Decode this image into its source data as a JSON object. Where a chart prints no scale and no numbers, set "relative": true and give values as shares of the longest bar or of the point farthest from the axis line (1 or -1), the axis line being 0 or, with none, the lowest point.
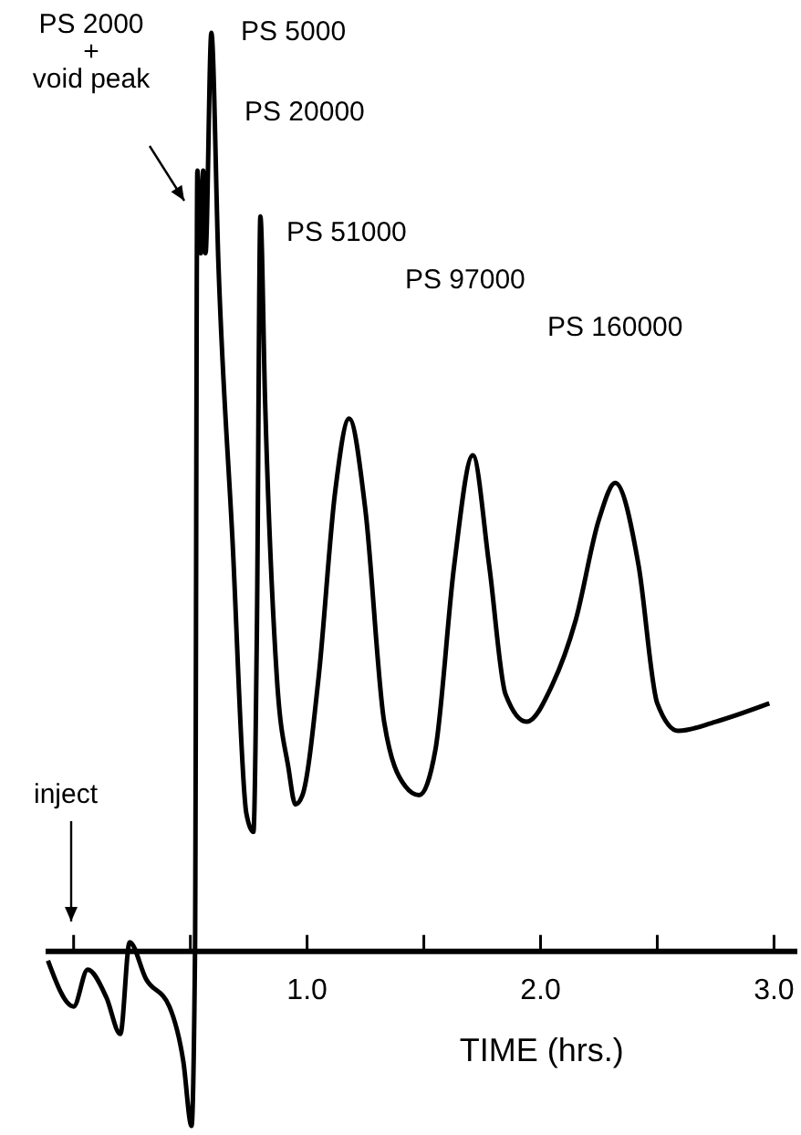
{
  "chart_data": {
    "type": "line",
    "relative": true,
    "xlabel": "TIME (hrs.)",
    "color": "#000000",
    "x": [
      -0.11,
      0.0,
      0.06,
      0.14,
      0.2,
      0.24,
      0.31,
      0.41,
      0.47,
      0.505,
      0.52,
      0.53,
      0.545,
      0.555,
      0.565,
      0.59,
      0.62,
      0.68,
      0.74,
      0.77,
      0.785,
      0.8,
      0.82,
      0.87,
      0.92,
      0.95,
      0.98,
      1.05,
      1.12,
      1.18,
      1.25,
      1.33,
      1.42,
      1.48,
      1.55,
      1.63,
      1.71,
      1.78,
      1.85,
      1.94,
      2.05,
      2.15,
      2.25,
      2.32,
      2.42,
      2.5,
      2.59,
      2.75,
      2.98
    ],
    "values": [
      -0.01,
      -0.06,
      -0.02,
      -0.05,
      -0.09,
      0.01,
      -0.03,
      -0.06,
      -0.12,
      -0.19,
      0.0,
      0.85,
      0.76,
      0.85,
      0.76,
      1.0,
      0.75,
      0.45,
      0.15,
      0.13,
      0.35,
      0.8,
      0.6,
      0.3,
      0.2,
      0.16,
      0.17,
      0.3,
      0.5,
      0.58,
      0.48,
      0.25,
      0.18,
      0.17,
      0.22,
      0.42,
      0.54,
      0.42,
      0.28,
      0.25,
      0.29,
      0.36,
      0.47,
      0.51,
      0.42,
      0.27,
      0.24,
      0.25,
      0.27
    ],
    "xlim": [
      -0.12,
      3.1
    ],
    "xticks": [
      {
        "value": 0,
        "label": null
      },
      {
        "value": 0.5,
        "label": null
      },
      {
        "value": 1,
        "label": "1.0"
      },
      {
        "value": 1.5,
        "label": null
      },
      {
        "value": 2,
        "label": "2.0"
      },
      {
        "value": 2.5,
        "label": null
      },
      {
        "value": 3,
        "label": "3.0"
      }
    ],
    "annotations": [
      "PS 2000\n+\nvoid peak",
      "PS 5000",
      "PS 20000",
      "PS 51000",
      "PS 97000",
      "PS 160000",
      "inject"
    ]
  }
}
